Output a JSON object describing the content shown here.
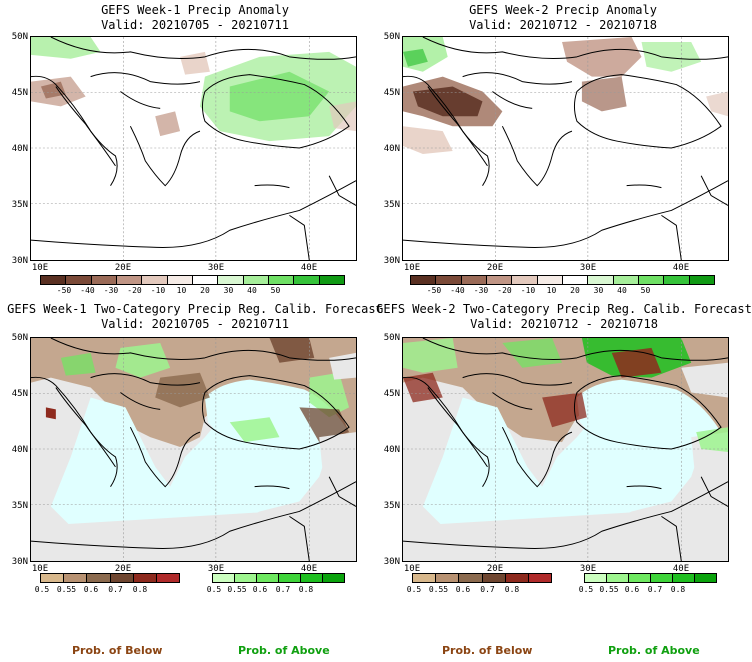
{
  "panels": [
    {
      "title_line1": "GEFS Week-1 Precip Anomaly",
      "title_line2": "Valid: 20210705 - 20210711"
    },
    {
      "title_line1": "GEFS Week-2 Precip Anomaly",
      "title_line2": "Valid: 20210712 - 20210718"
    },
    {
      "title_line1": "GEFS Week-1 Two-Category Precip Reg. Calib. Forecast",
      "title_line2": "Valid: 20210705 - 20210711"
    },
    {
      "title_line1": "GEFS Week-2 Two-Category Precip Reg. Calib. Forecast",
      "title_line2": "Valid: 20210712 - 20210718"
    }
  ],
  "axes": {
    "lat_labels": [
      "50N",
      "45N",
      "40N",
      "35N",
      "30N"
    ],
    "lon_labels": [
      "10E",
      "20E",
      "30E",
      "40E"
    ]
  },
  "anomaly_colorbar": {
    "labels": [
      "-50",
      "-40",
      "-30",
      "-20",
      "-10",
      "10",
      "20",
      "30",
      "40",
      "50"
    ],
    "colors": [
      "#5a3022",
      "#7b4a38",
      "#9b6b58",
      "#c09585",
      "#e3c9bd",
      "#f5ebe6",
      "#ffffff",
      "#d9f7d2",
      "#a6ee9a",
      "#6fe065",
      "#36c33a",
      "#109a14"
    ]
  },
  "prob_below_colorbar": {
    "labels": [
      "0.5",
      "0.55",
      "0.6",
      "0.7",
      "0.8"
    ],
    "colors": [
      "#d8b88c",
      "#b89272",
      "#8b6a4e",
      "#6f4630",
      "#8e2a1e",
      "#b02a2a"
    ]
  },
  "prob_above_colorbar": {
    "labels": [
      "0.5",
      "0.55",
      "0.6",
      "0.7",
      "0.8"
    ],
    "colors": [
      "#ccffc0",
      "#9ef58f",
      "#6ee860",
      "#3fd43a",
      "#1fbf20",
      "#0aa30c"
    ]
  },
  "footer": {
    "below_label": "Prob. of Below",
    "above_label": "Prob. of Above",
    "below_color": "#8b4513",
    "above_color": "#10a010"
  }
}
